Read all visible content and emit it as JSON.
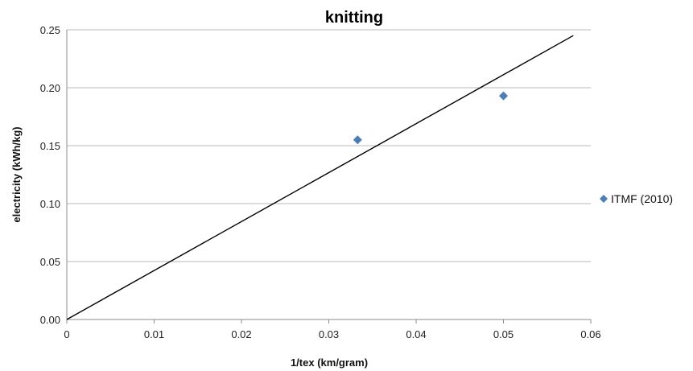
{
  "chart_data": {
    "type": "scatter",
    "title": "knitting",
    "xlabel": "1/tex (km/gram)",
    "ylabel": "electricity (kWh/kg)",
    "xlim": [
      0,
      0.06
    ],
    "ylim": [
      0,
      0.25
    ],
    "xticks": [
      "0",
      "0.01",
      "0.02",
      "0.03",
      "0.04",
      "0.05",
      "0.06"
    ],
    "yticks": [
      "0.00",
      "0.05",
      "0.10",
      "0.15",
      "0.20",
      "0.25"
    ],
    "grid": "horizontal",
    "legend_position": "right",
    "series": [
      {
        "name": "ITMF (2010)",
        "marker": "diamond",
        "color": "#4a7ebb",
        "x": [
          0.0333,
          0.05
        ],
        "y": [
          0.155,
          0.193
        ]
      }
    ],
    "trendline": {
      "color": "#000000",
      "x": [
        0,
        0.058
      ],
      "y": [
        0,
        0.245
      ]
    }
  }
}
